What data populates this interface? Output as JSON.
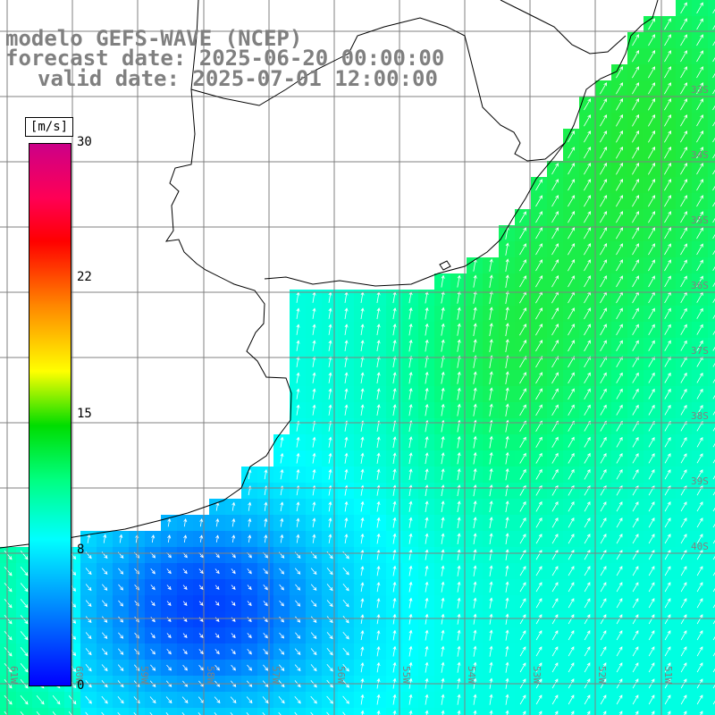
{
  "title": {
    "line1": "modelo GEFS-WAVE (NCEP)",
    "line2": "forecast date: 2025-06-20 00:00:00",
    "line3": "valid date: 2025-07-01 12:00:00"
  },
  "colorbar": {
    "unit": "[m/s]",
    "ticks": [
      "30",
      "22",
      "15",
      "8",
      "0"
    ],
    "tick_values": [
      30,
      22,
      15,
      8,
      0
    ],
    "range": [
      0,
      30
    ],
    "colors": [
      "#0000ff",
      "#00aaff",
      "#00ffff",
      "#00ff80",
      "#00dd00",
      "#ffff00",
      "#ff8800",
      "#ff0000",
      "#cc0088"
    ]
  },
  "grid": {
    "lat_labels": [
      "33S",
      "34S",
      "35S",
      "36S",
      "37S",
      "38S",
      "39S",
      "40S"
    ],
    "lon_labels": [
      "61W",
      "60W",
      "59W",
      "58W",
      "57W",
      "56W",
      "55W",
      "54W",
      "53W",
      "52W",
      "51W"
    ]
  },
  "colors": {
    "land": "#ffffff",
    "coastline": "#000000",
    "grid_line": "#808080",
    "arrow": "#ffffff",
    "title_text": "#808080"
  },
  "field": {
    "variable": "wind speed",
    "vector_arrows": "wind direction",
    "min_visible": 0,
    "max_visible": 12
  }
}
